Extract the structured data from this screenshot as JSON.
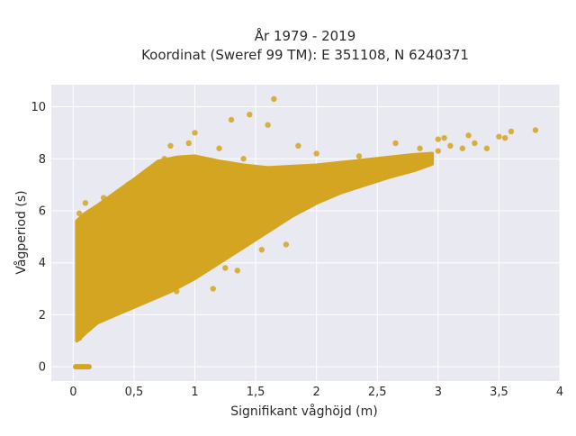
{
  "chart_data": {
    "type": "scatter",
    "title_lines": [
      "År 1979 - 2019",
      "Koordinat (Sweref 99 TM): E 351108, N 6240371"
    ],
    "xlabel": "Signifikant våghöjd (m)",
    "ylabel": "Vågperiod (s)",
    "xlim": [
      -0.18,
      4.0
    ],
    "ylim": [
      -0.55,
      10.85
    ],
    "x_ticks": [
      0,
      0.5,
      1,
      1.5,
      2,
      2.5,
      3,
      3.5,
      4
    ],
    "x_tick_labels": [
      "0",
      "0,5",
      "1",
      "1,5",
      "2",
      "2,5",
      "3",
      "3,5",
      "4"
    ],
    "y_ticks": [
      0,
      2,
      4,
      6,
      8,
      10
    ],
    "y_tick_labels": [
      "0",
      "2",
      "4",
      "6",
      "8",
      "10"
    ],
    "grid": true,
    "marker_color": "#d4a520",
    "background_color": "#e9e9f1",
    "points": [
      [
        0.05,
        1.1
      ],
      [
        0.05,
        5.9
      ],
      [
        0.05,
        2.5
      ],
      [
        0.08,
        5.5
      ],
      [
        0.1,
        6.3
      ],
      [
        0.12,
        1.5
      ],
      [
        0.15,
        1.8
      ],
      [
        0.2,
        2.0
      ],
      [
        0.25,
        6.5
      ],
      [
        0.3,
        2.4
      ],
      [
        0.3,
        5.0
      ],
      [
        0.4,
        2.7
      ],
      [
        0.45,
        7.0
      ],
      [
        0.5,
        3.0
      ],
      [
        0.5,
        5.5
      ],
      [
        0.6,
        3.3
      ],
      [
        0.6,
        7.5
      ],
      [
        0.7,
        3.6
      ],
      [
        0.7,
        6.2
      ],
      [
        0.75,
        8.0
      ],
      [
        0.8,
        3.9
      ],
      [
        0.8,
        8.5
      ],
      [
        0.85,
        2.9
      ],
      [
        0.9,
        4.2
      ],
      [
        0.9,
        6.8
      ],
      [
        0.95,
        8.6
      ],
      [
        1.0,
        4.4
      ],
      [
        1.0,
        9.0
      ],
      [
        1.05,
        7.2
      ],
      [
        1.1,
        4.6
      ],
      [
        1.15,
        3.0
      ],
      [
        1.2,
        4.9
      ],
      [
        1.2,
        8.4
      ],
      [
        1.25,
        3.8
      ],
      [
        1.3,
        5.2
      ],
      [
        1.3,
        9.5
      ],
      [
        1.35,
        3.7
      ],
      [
        1.4,
        5.4
      ],
      [
        1.4,
        8.0
      ],
      [
        1.45,
        9.7
      ],
      [
        1.5,
        5.6
      ],
      [
        1.55,
        4.5
      ],
      [
        1.6,
        5.8
      ],
      [
        1.6,
        9.3
      ],
      [
        1.65,
        10.3
      ],
      [
        1.7,
        6.0
      ],
      [
        1.75,
        4.7
      ],
      [
        1.8,
        6.2
      ],
      [
        1.85,
        8.5
      ],
      [
        1.9,
        6.4
      ],
      [
        2.0,
        6.6
      ],
      [
        2.0,
        8.2
      ],
      [
        2.1,
        6.8
      ],
      [
        2.2,
        7.0
      ],
      [
        2.3,
        7.2
      ],
      [
        2.35,
        8.1
      ],
      [
        2.4,
        7.3
      ],
      [
        2.5,
        7.5
      ],
      [
        2.6,
        7.6
      ],
      [
        2.65,
        8.6
      ],
      [
        2.7,
        7.8
      ],
      [
        2.8,
        7.9
      ],
      [
        2.85,
        8.4
      ],
      [
        2.9,
        8.1
      ],
      [
        3.0,
        8.3
      ],
      [
        3.0,
        8.75
      ],
      [
        3.05,
        8.8
      ],
      [
        3.1,
        8.5
      ],
      [
        3.2,
        8.4
      ],
      [
        3.25,
        8.9
      ],
      [
        3.3,
        8.6
      ],
      [
        3.4,
        8.4
      ],
      [
        3.5,
        8.85
      ],
      [
        3.55,
        8.8
      ],
      [
        3.6,
        9.05
      ],
      [
        3.8,
        9.1
      ]
    ]
  }
}
